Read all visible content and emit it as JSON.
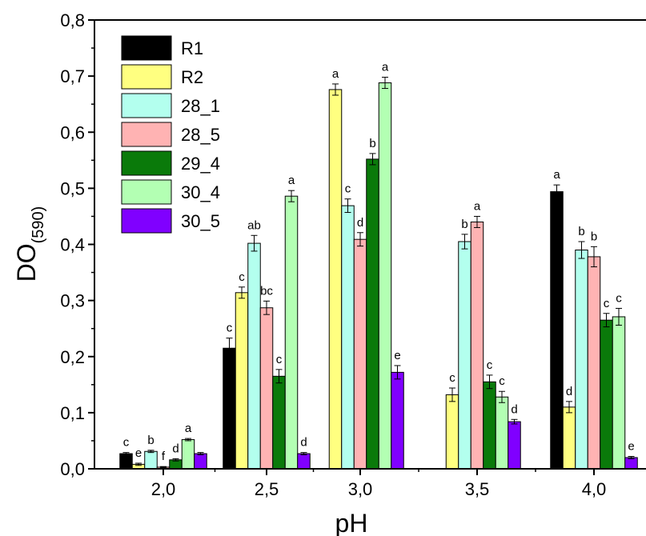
{
  "chart_data": {
    "type": "bar",
    "xlabel": "pH",
    "ylabel": "DO",
    "ylabel_sub": "(590)",
    "ylim": [
      0,
      0.8
    ],
    "yticks": [
      "0,0",
      "0,1",
      "0,2",
      "0,3",
      "0,4",
      "0,5",
      "0,6",
      "0,7",
      "0,8"
    ],
    "categories": [
      "2,0",
      "2,5",
      "3,0",
      "3,5",
      "4,0"
    ],
    "legend_position": "top-left",
    "grid": false,
    "series": [
      {
        "name": "R1",
        "color": "#000000",
        "values": [
          0.027,
          0.215,
          0.0,
          0.0,
          0.494
        ],
        "errors": [
          0.002,
          0.018,
          0,
          0,
          0.012
        ],
        "labels": [
          "c",
          "c",
          "",
          "",
          "a"
        ]
      },
      {
        "name": "R2",
        "color": "#ffff80",
        "values": [
          0.008,
          0.314,
          0.676,
          0.132,
          0.11
        ],
        "errors": [
          0.002,
          0.01,
          0.01,
          0.012,
          0.01
        ],
        "labels": [
          "e",
          "c",
          "a",
          "c",
          "d"
        ]
      },
      {
        "name": "28_1",
        "color": "#b3ffee",
        "values": [
          0.031,
          0.402,
          0.469,
          0.405,
          0.39
        ],
        "errors": [
          0.002,
          0.014,
          0.012,
          0.013,
          0.015
        ],
        "labels": [
          "b",
          "ab",
          "c",
          "b",
          "b"
        ]
      },
      {
        "name": "28_5",
        "color": "#ffb3b3",
        "values": [
          0.003,
          0.287,
          0.409,
          0.44,
          0.378
        ],
        "errors": [
          0.001,
          0.012,
          0.012,
          0.01,
          0.018
        ],
        "labels": [
          "f",
          "bc",
          "d",
          "a",
          "b"
        ]
      },
      {
        "name": "29_4",
        "color": "#0a7a0a",
        "values": [
          0.016,
          0.165,
          0.552,
          0.155,
          0.265
        ],
        "errors": [
          0.002,
          0.012,
          0.01,
          0.012,
          0.012
        ],
        "labels": [
          "d",
          "c",
          "b",
          "c",
          "c"
        ]
      },
      {
        "name": "30_4",
        "color": "#b3ffb3",
        "values": [
          0.052,
          0.486,
          0.688,
          0.128,
          0.271
        ],
        "errors": [
          0.002,
          0.01,
          0.01,
          0.01,
          0.015
        ],
        "labels": [
          "a",
          "a",
          "a",
          "c",
          "c"
        ]
      },
      {
        "name": "30_5",
        "color": "#8000ff",
        "values": [
          0.027,
          0.027,
          0.172,
          0.084,
          0.02
        ],
        "errors": [
          0.002,
          0.002,
          0.012,
          0.004,
          0.002
        ],
        "labels": [
          "",
          "d",
          "e",
          "d",
          "e"
        ]
      }
    ]
  }
}
